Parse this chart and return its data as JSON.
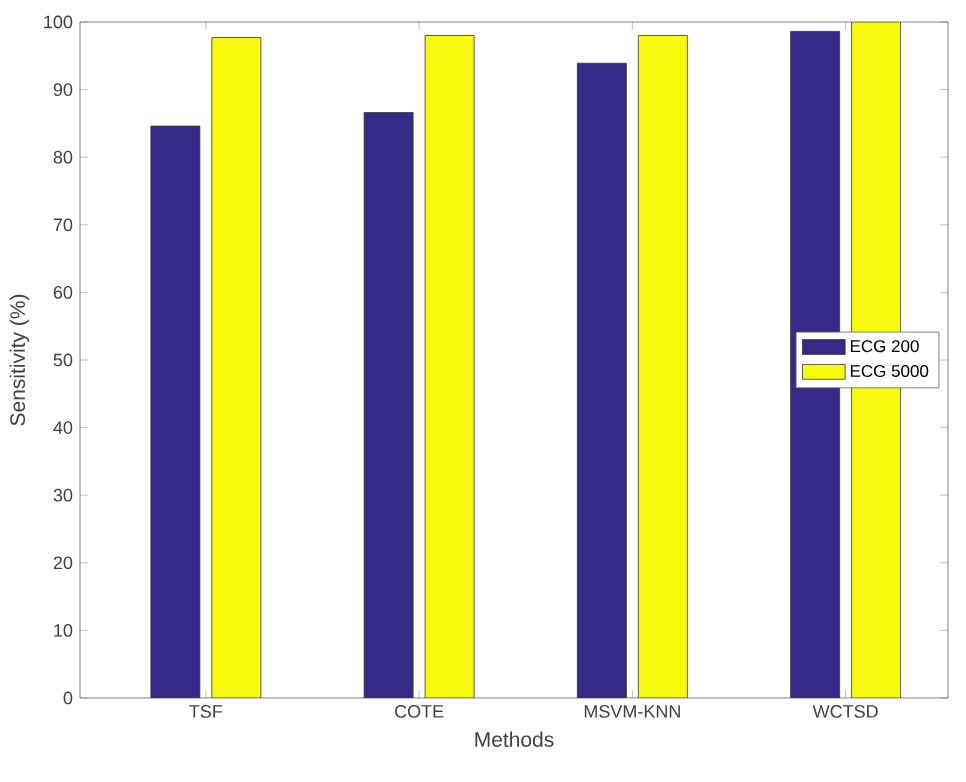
{
  "chart_data": {
    "type": "bar",
    "xlabel": "Methods",
    "ylabel": "Sensitivity (%)",
    "categories": [
      "TSF",
      "COTE",
      "MSVM-KNN",
      "WCTSD"
    ],
    "series": [
      {
        "name": "ECG 200",
        "color": "#352a87",
        "values": [
          84.6,
          86.6,
          93.9,
          98.6
        ]
      },
      {
        "name": "ECG 5000",
        "color": "#f9fb0e",
        "values": [
          97.7,
          98.0,
          98.0,
          100
        ]
      }
    ],
    "ylim": [
      0,
      100
    ],
    "yticks": [
      0,
      10,
      20,
      30,
      40,
      50,
      60,
      70,
      80,
      90,
      100
    ],
    "legend": "right",
    "grid": false
  }
}
